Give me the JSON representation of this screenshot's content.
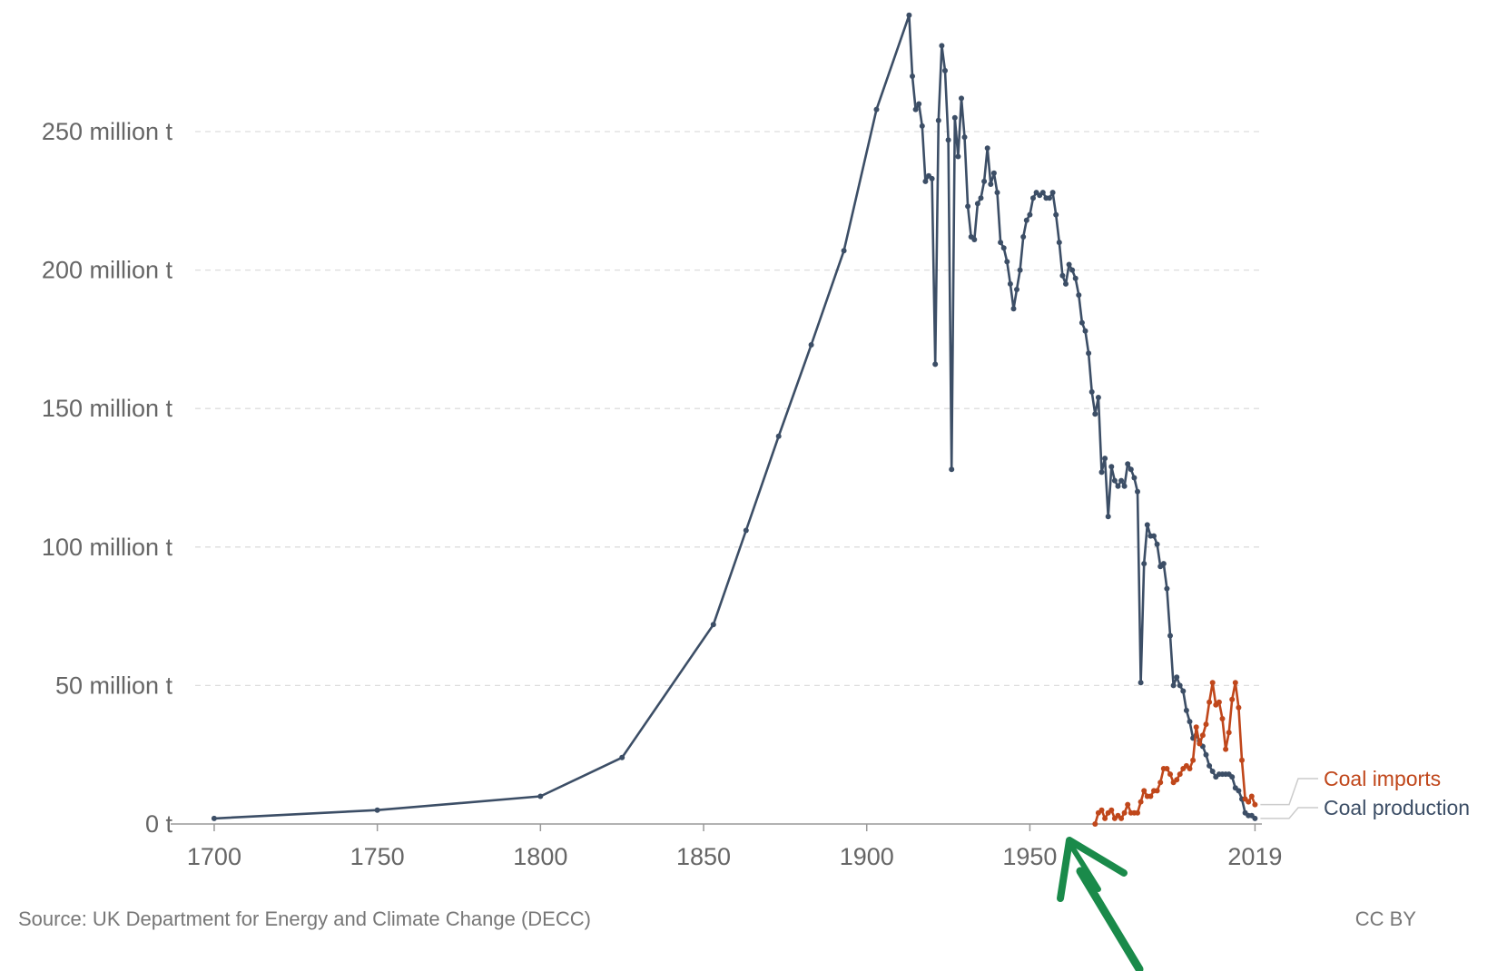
{
  "chart_data": {
    "type": "line",
    "title": "",
    "xlabel": "",
    "ylabel": "",
    "xlim": [
      1690,
      2020
    ],
    "ylim": [
      0,
      300
    ],
    "grid": "horizontal-dashed",
    "legend": "right-end-labels",
    "x_ticks": [
      {
        "value": 1700,
        "label": "1700"
      },
      {
        "value": 1750,
        "label": "1750"
      },
      {
        "value": 1800,
        "label": "1800"
      },
      {
        "value": 1850,
        "label": "1850"
      },
      {
        "value": 1900,
        "label": "1900"
      },
      {
        "value": 1950,
        "label": "1950"
      },
      {
        "value": 2019,
        "label": "2019"
      }
    ],
    "y_ticks": [
      {
        "value": 0,
        "label": "0 t"
      },
      {
        "value": 50,
        "label": "50 million t"
      },
      {
        "value": 100,
        "label": "100 million t"
      },
      {
        "value": 150,
        "label": "150 million t"
      },
      {
        "value": 200,
        "label": "200 million t"
      },
      {
        "value": 250,
        "label": "250 million t"
      }
    ],
    "series": [
      {
        "name": "Coal production",
        "color": "#3c4e66",
        "points": [
          [
            1700,
            2
          ],
          [
            1750,
            5
          ],
          [
            1800,
            10
          ],
          [
            1825,
            24
          ],
          [
            1853,
            72
          ],
          [
            1863,
            106
          ],
          [
            1873,
            140
          ],
          [
            1883,
            173
          ],
          [
            1893,
            207
          ],
          [
            1903,
            258
          ],
          [
            1913,
            292
          ],
          [
            1914,
            270
          ],
          [
            1915,
            258
          ],
          [
            1916,
            260
          ],
          [
            1917,
            252
          ],
          [
            1918,
            232
          ],
          [
            1919,
            234
          ],
          [
            1920,
            233
          ],
          [
            1921,
            166
          ],
          [
            1922,
            254
          ],
          [
            1923,
            281
          ],
          [
            1924,
            272
          ],
          [
            1925,
            247
          ],
          [
            1926,
            128
          ],
          [
            1927,
            255
          ],
          [
            1928,
            241
          ],
          [
            1929,
            262
          ],
          [
            1930,
            248
          ],
          [
            1931,
            223
          ],
          [
            1932,
            212
          ],
          [
            1933,
            211
          ],
          [
            1934,
            224
          ],
          [
            1935,
            226
          ],
          [
            1936,
            232
          ],
          [
            1937,
            244
          ],
          [
            1938,
            231
          ],
          [
            1939,
            235
          ],
          [
            1940,
            228
          ],
          [
            1941,
            210
          ],
          [
            1942,
            208
          ],
          [
            1943,
            203
          ],
          [
            1944,
            195
          ],
          [
            1945,
            186
          ],
          [
            1946,
            193
          ],
          [
            1947,
            200
          ],
          [
            1948,
            212
          ],
          [
            1949,
            218
          ],
          [
            1950,
            220
          ],
          [
            1951,
            226
          ],
          [
            1952,
            228
          ],
          [
            1953,
            227
          ],
          [
            1954,
            228
          ],
          [
            1955,
            226
          ],
          [
            1956,
            226
          ],
          [
            1957,
            228
          ],
          [
            1958,
            220
          ],
          [
            1959,
            210
          ],
          [
            1960,
            198
          ],
          [
            1961,
            195
          ],
          [
            1962,
            202
          ],
          [
            1963,
            200
          ],
          [
            1964,
            197
          ],
          [
            1965,
            191
          ],
          [
            1966,
            181
          ],
          [
            1967,
            178
          ],
          [
            1968,
            170
          ],
          [
            1969,
            156
          ],
          [
            1970,
            148
          ],
          [
            1971,
            154
          ],
          [
            1972,
            127
          ],
          [
            1973,
            132
          ],
          [
            1974,
            111
          ],
          [
            1975,
            129
          ],
          [
            1976,
            124
          ],
          [
            1977,
            122
          ],
          [
            1978,
            124
          ],
          [
            1979,
            122
          ],
          [
            1980,
            130
          ],
          [
            1981,
            128
          ],
          [
            1982,
            125
          ],
          [
            1983,
            120
          ],
          [
            1984,
            51
          ],
          [
            1985,
            94
          ],
          [
            1986,
            108
          ],
          [
            1987,
            104
          ],
          [
            1988,
            104
          ],
          [
            1989,
            101
          ],
          [
            1990,
            93
          ],
          [
            1991,
            94
          ],
          [
            1992,
            85
          ],
          [
            1993,
            68
          ],
          [
            1994,
            50
          ],
          [
            1995,
            53
          ],
          [
            1996,
            50
          ],
          [
            1997,
            48
          ],
          [
            1998,
            41
          ],
          [
            1999,
            37
          ],
          [
            2000,
            31
          ],
          [
            2001,
            32
          ],
          [
            2002,
            30
          ],
          [
            2003,
            28
          ],
          [
            2004,
            25
          ],
          [
            2005,
            21
          ],
          [
            2006,
            19
          ],
          [
            2007,
            17
          ],
          [
            2008,
            18
          ],
          [
            2009,
            18
          ],
          [
            2010,
            18
          ],
          [
            2011,
            18
          ],
          [
            2012,
            17
          ],
          [
            2013,
            13
          ],
          [
            2014,
            12
          ],
          [
            2015,
            9
          ],
          [
            2016,
            4
          ],
          [
            2017,
            3
          ],
          [
            2018,
            3
          ],
          [
            2019,
            2
          ]
        ]
      },
      {
        "name": "Coal imports",
        "color": "#c0471b",
        "points": [
          [
            1970,
            0
          ],
          [
            1971,
            4
          ],
          [
            1972,
            5
          ],
          [
            1973,
            2
          ],
          [
            1974,
            4
          ],
          [
            1975,
            5
          ],
          [
            1976,
            2
          ],
          [
            1977,
            3
          ],
          [
            1978,
            2
          ],
          [
            1979,
            4
          ],
          [
            1980,
            7
          ],
          [
            1981,
            4
          ],
          [
            1982,
            4
          ],
          [
            1983,
            4
          ],
          [
            1984,
            8
          ],
          [
            1985,
            12
          ],
          [
            1986,
            10
          ],
          [
            1987,
            10
          ],
          [
            1988,
            12
          ],
          [
            1989,
            12
          ],
          [
            1990,
            15
          ],
          [
            1991,
            20
          ],
          [
            1992,
            20
          ],
          [
            1993,
            18
          ],
          [
            1994,
            15
          ],
          [
            1995,
            16
          ],
          [
            1996,
            18
          ],
          [
            1997,
            20
          ],
          [
            1998,
            21
          ],
          [
            1999,
            20
          ],
          [
            2000,
            23
          ],
          [
            2001,
            35
          ],
          [
            2002,
            29
          ],
          [
            2003,
            32
          ],
          [
            2004,
            36
          ],
          [
            2005,
            44
          ],
          [
            2006,
            51
          ],
          [
            2007,
            43
          ],
          [
            2008,
            44
          ],
          [
            2009,
            38
          ],
          [
            2010,
            27
          ],
          [
            2011,
            33
          ],
          [
            2012,
            45
          ],
          [
            2013,
            51
          ],
          [
            2014,
            42
          ],
          [
            2015,
            23
          ],
          [
            2016,
            9
          ],
          [
            2017,
            8
          ],
          [
            2018,
            10
          ],
          [
            2019,
            7
          ]
        ]
      }
    ]
  },
  "footer": {
    "source": "Source: UK Department for Energy and Climate Change (DECC)",
    "license": "CC BY"
  },
  "annotation": {
    "arrow_color": "#1a8a4a"
  }
}
